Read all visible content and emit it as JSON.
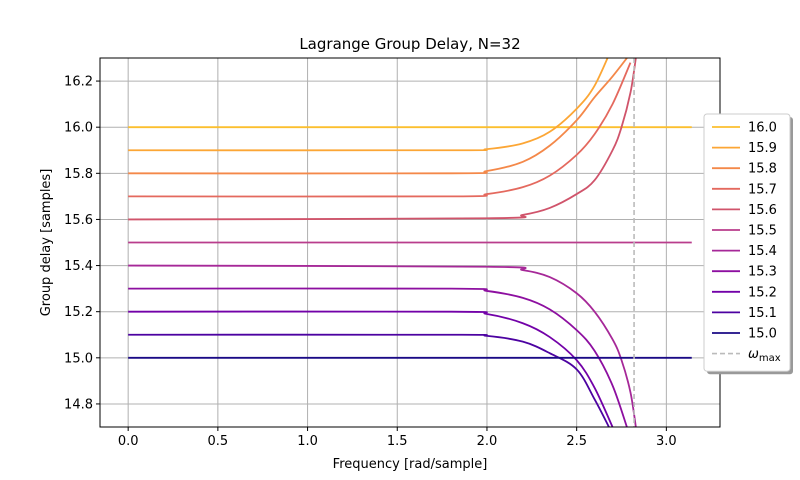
{
  "chart_data": {
    "type": "line",
    "title": "Lagrange Group Delay, N=32",
    "xlabel": "Frequency [rad/sample]",
    "ylabel": "Group delay [samples]",
    "xlim": [
      -0.157,
      3.299
    ],
    "ylim": [
      14.7,
      16.3
    ],
    "xticks": [
      "0.0",
      "0.5",
      "1.0",
      "1.5",
      "2.0",
      "2.5",
      "3.0"
    ],
    "xtick_values": [
      0.0,
      0.5,
      1.0,
      1.5,
      2.0,
      2.5,
      3.0
    ],
    "yticks": [
      "14.8",
      "15.0",
      "15.2",
      "15.4",
      "15.6",
      "15.8",
      "16.0",
      "16.2"
    ],
    "ytick_values": [
      14.8,
      15.0,
      15.2,
      15.4,
      15.6,
      15.8,
      16.0,
      16.2
    ],
    "grid": true,
    "legend_placement": "right (outside, center)",
    "x_range": [
      0.0,
      3.1416
    ],
    "series": [
      {
        "name": "16.0",
        "delay": 16.0,
        "color": "#fcbf2e",
        "points": [
          [
            0.0,
            16.0
          ],
          [
            2.0,
            16.0
          ],
          [
            2.4,
            16.0
          ],
          [
            3.1416,
            16.0
          ]
        ]
      },
      {
        "name": "15.9",
        "delay": 15.9,
        "color": "#fca635",
        "points": [
          [
            0.0,
            15.9
          ],
          [
            1.8,
            15.9
          ],
          [
            2.0,
            15.905
          ],
          [
            2.2,
            15.93
          ],
          [
            2.35,
            15.98
          ],
          [
            2.5,
            16.08
          ],
          [
            2.6,
            16.18
          ],
          [
            2.7,
            16.35
          ]
        ]
      },
      {
        "name": "15.8",
        "delay": 15.8,
        "color": "#f48849",
        "points": [
          [
            0.0,
            15.8
          ],
          [
            1.8,
            15.8
          ],
          [
            2.0,
            15.81
          ],
          [
            2.2,
            15.85
          ],
          [
            2.35,
            15.92
          ],
          [
            2.5,
            16.03
          ],
          [
            2.6,
            16.13
          ],
          [
            2.7,
            16.22
          ],
          [
            2.8,
            16.32
          ]
        ]
      },
      {
        "name": "15.7",
        "delay": 15.7,
        "color": "#e4695e",
        "points": [
          [
            0.0,
            15.7
          ],
          [
            1.8,
            15.7
          ],
          [
            2.0,
            15.71
          ],
          [
            2.2,
            15.74
          ],
          [
            2.35,
            15.79
          ],
          [
            2.5,
            15.88
          ],
          [
            2.6,
            15.97
          ],
          [
            2.7,
            16.1
          ],
          [
            2.8,
            16.28
          ]
        ]
      },
      {
        "name": "15.6",
        "delay": 15.6,
        "color": "#d0546b",
        "points": [
          [
            0.0,
            15.6
          ],
          [
            2.0,
            15.605
          ],
          [
            2.2,
            15.62
          ],
          [
            2.35,
            15.65
          ],
          [
            2.5,
            15.71
          ],
          [
            2.6,
            15.77
          ],
          [
            2.7,
            15.9
          ],
          [
            2.75,
            16.0
          ],
          [
            2.8,
            16.15
          ],
          [
            2.83,
            16.3
          ]
        ]
      },
      {
        "name": "15.5",
        "delay": 15.5,
        "color": "#b93d8c",
        "points": [
          [
            0.0,
            15.5
          ],
          [
            2.0,
            15.5
          ],
          [
            2.5,
            15.5
          ],
          [
            3.1416,
            15.5
          ]
        ]
      },
      {
        "name": "15.4",
        "delay": 15.4,
        "color": "#a62898",
        "points": [
          [
            0.0,
            15.4
          ],
          [
            2.0,
            15.395
          ],
          [
            2.2,
            15.38
          ],
          [
            2.35,
            15.35
          ],
          [
            2.5,
            15.28
          ],
          [
            2.6,
            15.2
          ],
          [
            2.7,
            15.08
          ],
          [
            2.75,
            14.99
          ],
          [
            2.8,
            14.85
          ],
          [
            2.83,
            14.7
          ]
        ]
      },
      {
        "name": "15.3",
        "delay": 15.3,
        "color": "#8d0fa0",
        "points": [
          [
            0.0,
            15.3
          ],
          [
            1.8,
            15.3
          ],
          [
            2.0,
            15.29
          ],
          [
            2.2,
            15.26
          ],
          [
            2.35,
            15.21
          ],
          [
            2.5,
            15.12
          ],
          [
            2.6,
            15.03
          ],
          [
            2.7,
            14.88
          ],
          [
            2.78,
            14.7
          ]
        ]
      },
      {
        "name": "15.2",
        "delay": 15.2,
        "color": "#7201a8",
        "points": [
          [
            0.0,
            15.2
          ],
          [
            1.8,
            15.2
          ],
          [
            2.0,
            15.19
          ],
          [
            2.2,
            15.15
          ],
          [
            2.35,
            15.09
          ],
          [
            2.5,
            14.99
          ],
          [
            2.6,
            14.87
          ],
          [
            2.7,
            14.7
          ]
        ]
      },
      {
        "name": "15.1",
        "delay": 15.1,
        "color": "#4c02a1",
        "points": [
          [
            0.0,
            15.1
          ],
          [
            1.8,
            15.1
          ],
          [
            2.0,
            15.095
          ],
          [
            2.2,
            15.07
          ],
          [
            2.35,
            15.02
          ],
          [
            2.5,
            14.95
          ],
          [
            2.6,
            14.82
          ],
          [
            2.68,
            14.7
          ]
        ]
      },
      {
        "name": "15.0",
        "delay": 15.0,
        "color": "#1a0a85",
        "points": [
          [
            0.0,
            15.0
          ],
          [
            2.0,
            15.0
          ],
          [
            2.5,
            15.0
          ],
          [
            3.1416,
            15.0
          ]
        ]
      }
    ],
    "vline": {
      "name": "ω_max",
      "label_main": "ω",
      "label_sub": "max",
      "x": 2.82,
      "color": "#bbbbbb",
      "style": "dashed"
    }
  }
}
